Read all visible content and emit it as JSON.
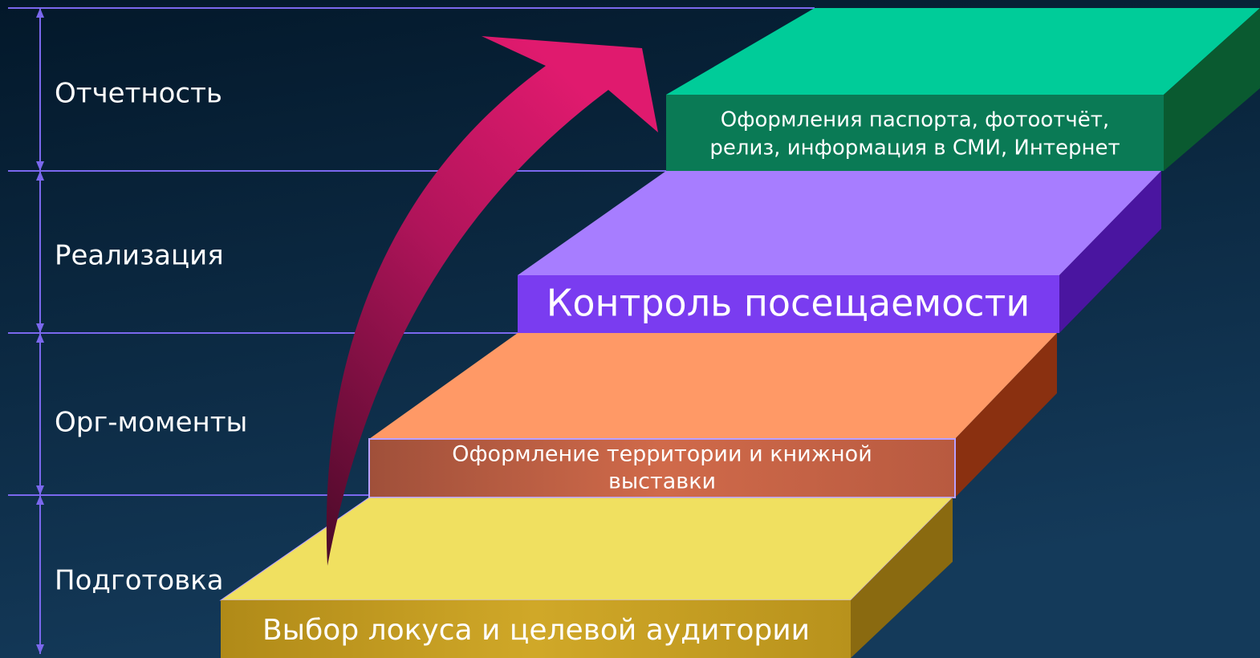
{
  "stages": [
    "Отчетность",
    "Реализация",
    "Орг-моменты",
    "Подготовка"
  ],
  "steps": [
    {
      "lines": [
        "Выбор локуса и целевой аудитории"
      ]
    },
    {
      "lines": [
        "Оформление территории и книжной",
        "выставки"
      ]
    },
    {
      "lines": [
        "Контроль посещаемости"
      ]
    },
    {
      "lines": [
        "Оформления паспорта, фотоотчёт,",
        "релиз, информация в СМИ, Интернет"
      ]
    }
  ]
}
